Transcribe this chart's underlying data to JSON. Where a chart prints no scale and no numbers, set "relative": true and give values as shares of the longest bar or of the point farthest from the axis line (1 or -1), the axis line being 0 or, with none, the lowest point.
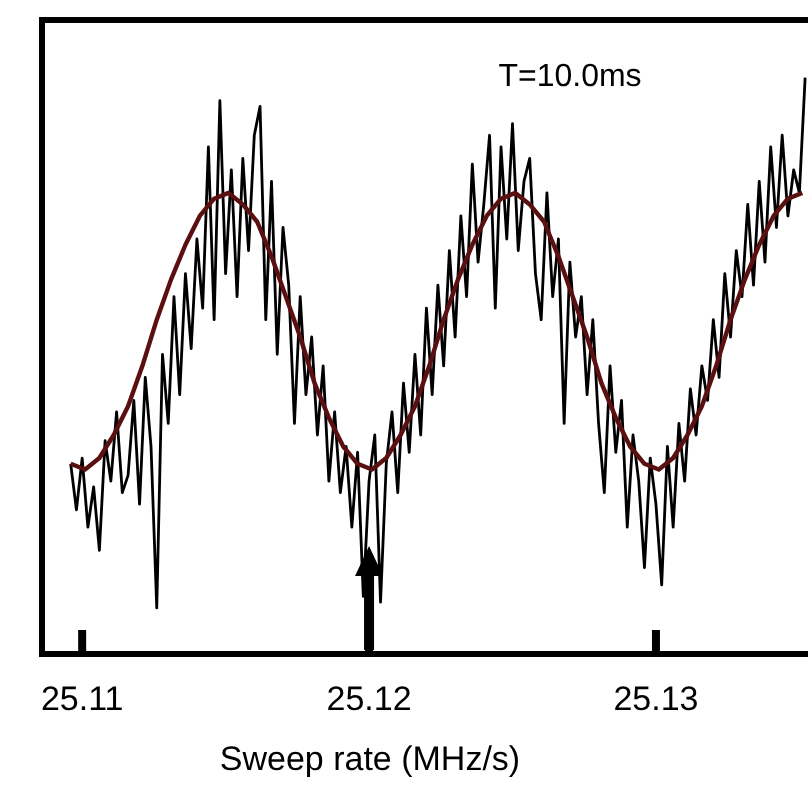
{
  "chart_data": {
    "type": "line",
    "relative": true,
    "xlabel": "Sweep rate (MHz/s)",
    "annotations": [
      "T=10.0ms"
    ],
    "xlim": [
      25.1086,
      25.1353
    ],
    "xticks": [
      25.11,
      25.12,
      25.13
    ],
    "grid": false,
    "marker": "none",
    "line_style": "solid",
    "x": [
      25.1096,
      25.1098,
      25.11,
      25.1102,
      25.1104,
      25.1106,
      25.1108,
      25.111,
      25.1112,
      25.1114,
      25.1116,
      25.1118,
      25.112,
      25.1122,
      25.1124,
      25.1126,
      25.1128,
      25.113,
      25.1132,
      25.1134,
      25.1136,
      25.1138,
      25.114,
      25.1142,
      25.1144,
      25.1146,
      25.1148,
      25.115,
      25.1152,
      25.1154,
      25.1156,
      25.1158,
      25.116,
      25.1162,
      25.1164,
      25.1166,
      25.1168,
      25.117,
      25.1172,
      25.1174,
      25.1176,
      25.1178,
      25.118,
      25.1182,
      25.1184,
      25.1186,
      25.1188,
      25.119,
      25.1192,
      25.1194,
      25.1196,
      25.1198,
      25.12,
      25.1202,
      25.1204,
      25.1206,
      25.1208,
      25.121,
      25.1212,
      25.1214,
      25.1216,
      25.1218,
      25.122,
      25.1222,
      25.1224,
      25.1226,
      25.1228,
      25.123,
      25.1232,
      25.1234,
      25.1236,
      25.1238,
      25.124,
      25.1242,
      25.1244,
      25.1246,
      25.1248,
      25.125,
      25.1252,
      25.1254,
      25.1256,
      25.1258,
      25.126,
      25.1262,
      25.1264,
      25.1266,
      25.1268,
      25.127,
      25.1272,
      25.1274,
      25.1276,
      25.1278,
      25.128,
      25.1282,
      25.1284,
      25.1286,
      25.1288,
      25.129,
      25.1292,
      25.1294,
      25.1296,
      25.1298,
      25.13,
      25.1302,
      25.1304,
      25.1306,
      25.1308,
      25.131,
      25.1312,
      25.1314,
      25.1316,
      25.1318,
      25.132,
      25.1322,
      25.1324,
      25.1326,
      25.1328,
      25.133,
      25.1332,
      25.1334,
      25.1336,
      25.1338,
      25.134,
      25.1342,
      25.1344,
      25.1346,
      25.1348,
      25.135,
      25.1352
    ],
    "series": [
      {
        "color": "#000000",
        "values": [
          0.33,
          0.25,
          0.34,
          0.22,
          0.29,
          0.18,
          0.37,
          0.3,
          0.42,
          0.28,
          0.31,
          0.44,
          0.26,
          0.48,
          0.36,
          0.08,
          0.52,
          0.4,
          0.62,
          0.45,
          0.66,
          0.53,
          0.72,
          0.6,
          0.88,
          0.58,
          0.96,
          0.66,
          0.84,
          0.62,
          0.86,
          0.7,
          0.9,
          0.95,
          0.58,
          0.82,
          0.52,
          0.74,
          0.64,
          0.4,
          0.62,
          0.45,
          0.55,
          0.38,
          0.5,
          0.3,
          0.42,
          0.28,
          0.36,
          0.22,
          0.35,
          0.1,
          0.3,
          0.38,
          0.09,
          0.33,
          0.42,
          0.28,
          0.47,
          0.35,
          0.52,
          0.38,
          0.6,
          0.45,
          0.64,
          0.5,
          0.7,
          0.55,
          0.76,
          0.62,
          0.85,
          0.68,
          0.78,
          0.9,
          0.6,
          0.88,
          0.72,
          0.92,
          0.7,
          0.82,
          0.86,
          0.66,
          0.58,
          0.8,
          0.62,
          0.72,
          0.4,
          0.68,
          0.55,
          0.62,
          0.45,
          0.58,
          0.4,
          0.28,
          0.5,
          0.35,
          0.44,
          0.22,
          0.38,
          0.3,
          0.15,
          0.34,
          0.26,
          0.12,
          0.36,
          0.22,
          0.4,
          0.3,
          0.46,
          0.38,
          0.5,
          0.44,
          0.58,
          0.48,
          0.66,
          0.55,
          0.7,
          0.62,
          0.78,
          0.64,
          0.82,
          0.68,
          0.88,
          0.74,
          0.9,
          0.76,
          0.84,
          0.8,
          1.0
        ]
      },
      {
        "color": "#5a1010",
        "x": [
          25.1096,
          25.1101,
          25.1106,
          25.1111,
          25.1116,
          25.1121,
          25.1126,
          25.1131,
          25.1136,
          25.1141,
          25.1146,
          25.1151,
          25.1156,
          25.1161,
          25.1166,
          25.1171,
          25.1176,
          25.1181,
          25.1186,
          25.1191,
          25.1196,
          25.1201,
          25.1206,
          25.1211,
          25.1216,
          25.1221,
          25.1226,
          25.1231,
          25.1236,
          25.1241,
          25.1246,
          25.1251,
          25.1256,
          25.1261,
          25.1266,
          25.1271,
          25.1276,
          25.1281,
          25.1286,
          25.1291,
          25.1296,
          25.1301,
          25.1306,
          25.1311,
          25.1316,
          25.1321,
          25.1326,
          25.1331,
          25.1336,
          25.1341,
          25.1346,
          25.1351
        ],
        "values": [
          0.33,
          0.32,
          0.34,
          0.38,
          0.43,
          0.5,
          0.58,
          0.65,
          0.71,
          0.76,
          0.79,
          0.8,
          0.78,
          0.75,
          0.69,
          0.62,
          0.55,
          0.47,
          0.41,
          0.36,
          0.33,
          0.32,
          0.34,
          0.38,
          0.43,
          0.5,
          0.58,
          0.65,
          0.71,
          0.76,
          0.79,
          0.8,
          0.78,
          0.75,
          0.69,
          0.62,
          0.55,
          0.47,
          0.41,
          0.36,
          0.33,
          0.32,
          0.34,
          0.38,
          0.43,
          0.5,
          0.58,
          0.65,
          0.71,
          0.76,
          0.79,
          0.8
        ]
      }
    ]
  }
}
